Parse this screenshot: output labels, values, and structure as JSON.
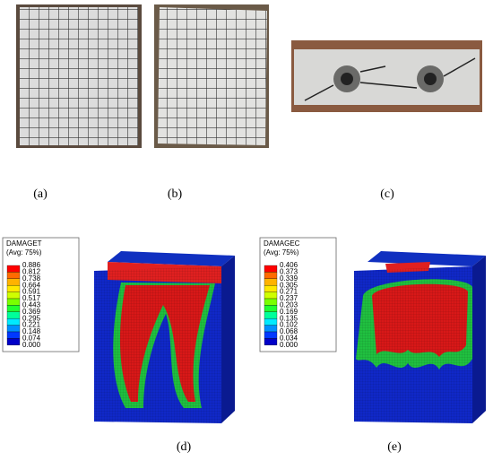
{
  "panels": [
    {
      "label": "(a)"
    },
    {
      "label": "(b)"
    },
    {
      "label": "(c)"
    },
    {
      "label": "(d)",
      "legend": {
        "title": [
          "DAMAGET",
          "(Avg: 75%)"
        ],
        "values": [
          "0.886",
          "0.812",
          "0.738",
          "0.664",
          "0.591",
          "0.517",
          "0.443",
          "0.369",
          "0.295",
          "0.221",
          "0.148",
          "0.074",
          "0.000"
        ]
      }
    },
    {
      "label": "(e)",
      "legend": {
        "title": [
          "DAMAGEC",
          "(Avg: 75%)"
        ],
        "values": [
          "0.406",
          "0.373",
          "0.339",
          "0.305",
          "0.271",
          "0.237",
          "0.203",
          "0.169",
          "0.135",
          "0.102",
          "0.068",
          "0.034",
          "0.000"
        ]
      }
    }
  ]
}
